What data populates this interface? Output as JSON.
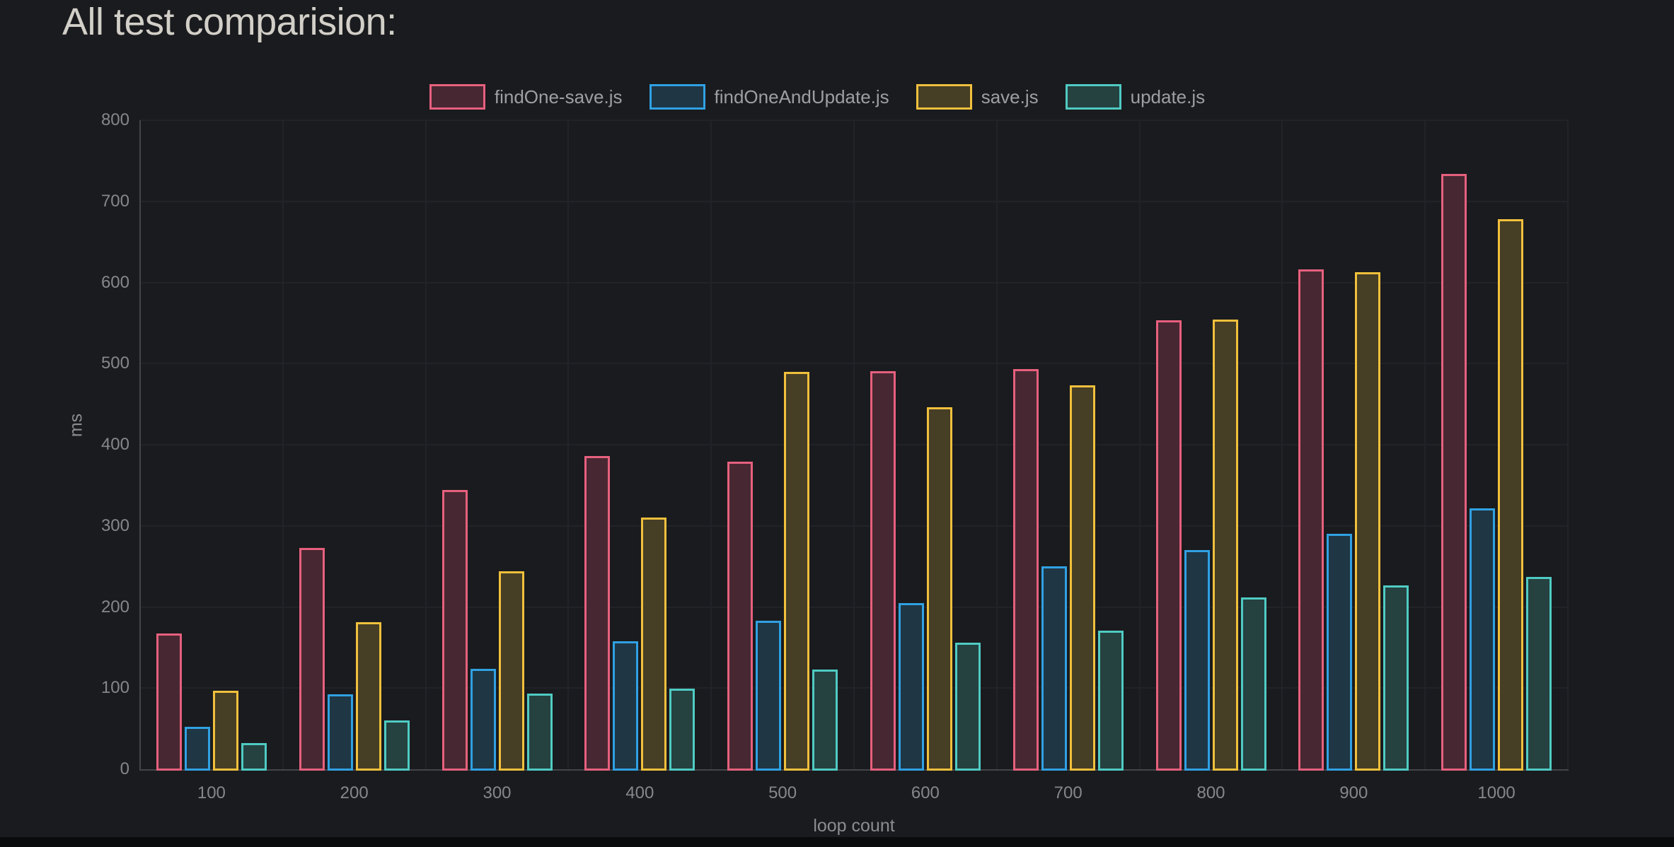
{
  "chart_data": {
    "type": "bar",
    "title": "All test comparision:",
    "xlabel": "loop count",
    "ylabel": "ms",
    "ylim": [
      0,
      800
    ],
    "ytick_step": 100,
    "yticks": [
      "0",
      "100",
      "200",
      "300",
      "400",
      "500",
      "600",
      "700",
      "800"
    ],
    "categories": [
      "100",
      "200",
      "300",
      "400",
      "500",
      "600",
      "700",
      "800",
      "900",
      "1000"
    ],
    "grid": true,
    "legend_position": "top",
    "series": [
      {
        "name": "findOne-save.js",
        "border": "#e7607e",
        "fill": "#472832",
        "values": [
          167,
          273,
          344,
          386,
          379,
          491,
          493,
          553,
          616,
          734
        ]
      },
      {
        "name": "findOneAndUpdate.js",
        "border": "#30a1e3",
        "fill": "#1f3644",
        "values": [
          52,
          92,
          124,
          158,
          183,
          205,
          250,
          270,
          290,
          322
        ]
      },
      {
        "name": "save.js",
        "border": "#f1c03c",
        "fill": "#463e25",
        "values": [
          97,
          181,
          244,
          310,
          490,
          446,
          473,
          554,
          613,
          678
        ]
      },
      {
        "name": "update.js",
        "border": "#4fcbc3",
        "fill": "#254140",
        "values": [
          32,
          60,
          93,
          99,
          123,
          156,
          171,
          212,
          227,
          237
        ]
      }
    ]
  },
  "colors": {
    "background": "#1a1b1e",
    "gridline": "#222328",
    "axis_line": "#434549",
    "tick_text": "#85878a",
    "axis_title_text": "#8b8d90",
    "legend_text": "#9d9fa2",
    "title_text": "#d2cfc8"
  }
}
